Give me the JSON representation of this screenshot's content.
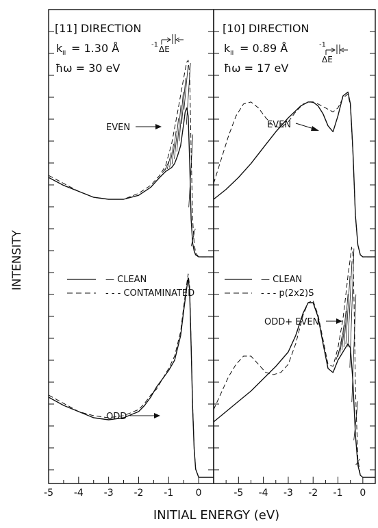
{
  "figure": {
    "ylabel": "INTENSITY",
    "xlabel": "INITIAL ENERGY (eV)"
  },
  "chart_data": [
    {
      "type": "line",
      "panel": "left",
      "direction_label": "[11] DIRECTION",
      "k_label": "k",
      "k_sub": "II",
      "k_value": "= 1.30 Å",
      "k_unit_exp": "-1",
      "hw_label": "ħω = 30 eV",
      "delta_e": "ΔE",
      "xlim": [
        -5,
        0.5
      ],
      "xticks": [
        "-5",
        "-4",
        "-3",
        "-2",
        "-1",
        "0"
      ],
      "legend": {
        "solid": "— CLEAN",
        "dashed": "- - - CONTAMINATED"
      },
      "annotations": {
        "upper": "EVEN",
        "lower": "ODD"
      },
      "series": [
        {
          "group": "upper",
          "style": "solid",
          "x": [
            -5,
            -4.5,
            -4,
            -3.5,
            -3,
            -2.5,
            -2,
            -1.6,
            -1.3,
            -1.1,
            -0.9,
            -0.8,
            -0.7,
            -0.6,
            -0.5,
            -0.45,
            -0.4,
            -0.35,
            -0.3,
            -0.25,
            -0.2,
            -0.15,
            -0.1,
            0,
            0.5
          ],
          "y": [
            0.41,
            0.37,
            0.34,
            0.31,
            0.3,
            0.3,
            0.32,
            0.36,
            0.41,
            0.44,
            0.46,
            0.48,
            0.52,
            0.57,
            0.68,
            0.74,
            0.76,
            0.72,
            0.5,
            0.2,
            0.08,
            0.04,
            0.02,
            0.01,
            0.01
          ]
        },
        {
          "group": "upper",
          "style": "dashed",
          "x": [
            -5,
            -4.5,
            -4,
            -3.5,
            -3,
            -2.5,
            -2,
            -1.6,
            -1.3,
            -1.1,
            -0.9,
            -0.7,
            -0.5,
            -0.4,
            -0.35,
            -0.3,
            -0.25,
            -0.2,
            -0.15,
            -0.1,
            0,
            0.5
          ],
          "y": [
            0.42,
            0.38,
            0.34,
            0.31,
            0.3,
            0.3,
            0.33,
            0.37,
            0.42,
            0.47,
            0.58,
            0.74,
            0.91,
            0.99,
            1.0,
            0.93,
            0.55,
            0.2,
            0.08,
            0.03,
            0.01,
            0.01
          ]
        },
        {
          "group": "lower",
          "style": "solid",
          "x": [
            -5,
            -4.5,
            -4,
            -3.5,
            -3,
            -2.5,
            -2,
            -1.8,
            -1.6,
            -1.4,
            -1.2,
            -1.0,
            -0.8,
            -0.6,
            -0.5,
            -0.4,
            -0.35,
            -0.3,
            -0.25,
            -0.2,
            -0.15,
            -0.1,
            0,
            0.5
          ],
          "y": [
            0.4,
            0.36,
            0.33,
            0.3,
            0.29,
            0.3,
            0.33,
            0.36,
            0.4,
            0.45,
            0.49,
            0.53,
            0.58,
            0.7,
            0.82,
            0.93,
            0.98,
            0.92,
            0.65,
            0.35,
            0.15,
            0.05,
            0.01,
            0.01
          ]
        },
        {
          "group": "lower",
          "style": "dashed",
          "x": [
            -5,
            -4.5,
            -4,
            -3.5,
            -3,
            -2.5,
            -2,
            -1.8,
            -1.6,
            -1.4,
            -1.2,
            -1.0,
            -0.8,
            -0.6,
            -0.5,
            -0.4,
            -0.35,
            -0.3,
            -0.25,
            -0.2,
            -0.15,
            -0.1,
            0,
            0.5
          ],
          "y": [
            0.41,
            0.37,
            0.33,
            0.31,
            0.3,
            0.31,
            0.34,
            0.37,
            0.41,
            0.44,
            0.49,
            0.54,
            0.6,
            0.72,
            0.84,
            0.95,
            1.0,
            0.94,
            0.66,
            0.36,
            0.16,
            0.05,
            0.01,
            0.01
          ]
        }
      ]
    },
    {
      "type": "line",
      "panel": "right",
      "direction_label": "[10] DIRECTION",
      "k_label": "k",
      "k_sub": "II",
      "k_value": "= 0.89 Å",
      "k_unit_exp": "-1",
      "hw_label": "ħω = 17 eV",
      "delta_e": "ΔE",
      "xlim": [
        -6,
        0.5
      ],
      "xticks": [
        "-5",
        "-4",
        "-3",
        "-2",
        "-1",
        "0"
      ],
      "legend": {
        "solid": "— CLEAN",
        "dashed": "- - - p(2x2)S"
      },
      "annotations": {
        "upper": "EVEN",
        "lower": "ODD+ EVEN"
      },
      "series": [
        {
          "group": "upper",
          "style": "solid",
          "x": [
            -6,
            -5.5,
            -5,
            -4.5,
            -4,
            -3.5,
            -3,
            -2.5,
            -2.2,
            -2.0,
            -1.8,
            -1.6,
            -1.4,
            -1.2,
            -1.0,
            -0.8,
            -0.6,
            -0.5,
            -0.4,
            -0.3,
            -0.2,
            -0.1,
            0,
            0.5
          ],
          "y": [
            0.3,
            0.35,
            0.41,
            0.48,
            0.56,
            0.64,
            0.71,
            0.77,
            0.79,
            0.79,
            0.77,
            0.73,
            0.67,
            0.64,
            0.72,
            0.82,
            0.84,
            0.78,
            0.55,
            0.22,
            0.07,
            0.02,
            0.01,
            0.01
          ]
        },
        {
          "group": "upper",
          "style": "dashed",
          "x": [
            -6,
            -5.7,
            -5.4,
            -5.1,
            -4.8,
            -4.5,
            -4.2,
            -3.9,
            -3.6,
            -3.3,
            -3.0,
            -2.7,
            -2.4,
            -2.1,
            -1.8,
            -1.5,
            -1.2,
            -1.0,
            -0.8,
            -0.6,
            -0.5,
            -0.4,
            -0.3,
            -0.2,
            -0.1,
            0,
            0.5
          ],
          "y": [
            0.38,
            0.5,
            0.62,
            0.72,
            0.78,
            0.79,
            0.76,
            0.71,
            0.67,
            0.66,
            0.69,
            0.74,
            0.78,
            0.79,
            0.78,
            0.76,
            0.74,
            0.76,
            0.81,
            0.83,
            0.77,
            0.54,
            0.22,
            0.07,
            0.02,
            0.01,
            0.01
          ]
        },
        {
          "group": "lower",
          "style": "solid",
          "x": [
            -6,
            -5.5,
            -5,
            -4.5,
            -4,
            -3.5,
            -3,
            -2.7,
            -2.4,
            -2.2,
            -2.0,
            -1.8,
            -1.6,
            -1.4,
            -1.2,
            -1.0,
            -0.8,
            -0.6,
            -0.5,
            -0.4,
            -0.3,
            -0.2,
            -0.1,
            0,
            0.5
          ],
          "y": [
            0.28,
            0.33,
            0.38,
            0.43,
            0.49,
            0.55,
            0.62,
            0.7,
            0.81,
            0.86,
            0.86,
            0.79,
            0.66,
            0.54,
            0.52,
            0.58,
            0.62,
            0.66,
            0.64,
            0.48,
            0.22,
            0.07,
            0.02,
            0.01,
            0.01
          ]
        },
        {
          "group": "lower",
          "style": "dashed",
          "x": [
            -6,
            -5.7,
            -5.4,
            -5.1,
            -4.8,
            -4.5,
            -4.2,
            -3.9,
            -3.6,
            -3.3,
            -3.0,
            -2.7,
            -2.4,
            -2.2,
            -2.0,
            -1.8,
            -1.6,
            -1.4,
            -1.2,
            -1.0,
            -0.8,
            -0.7,
            -0.6,
            -0.5,
            -0.45,
            -0.4,
            -0.35,
            -0.3,
            -0.2,
            -0.1,
            0,
            0.5
          ],
          "y": [
            0.34,
            0.42,
            0.5,
            0.56,
            0.6,
            0.6,
            0.56,
            0.52,
            0.51,
            0.52,
            0.56,
            0.66,
            0.8,
            0.86,
            0.87,
            0.8,
            0.68,
            0.56,
            0.55,
            0.64,
            0.78,
            0.88,
            0.99,
            1.08,
            1.13,
            1.1,
            0.85,
            0.45,
            0.1,
            0.02,
            0.01,
            0.01
          ]
        }
      ]
    }
  ]
}
